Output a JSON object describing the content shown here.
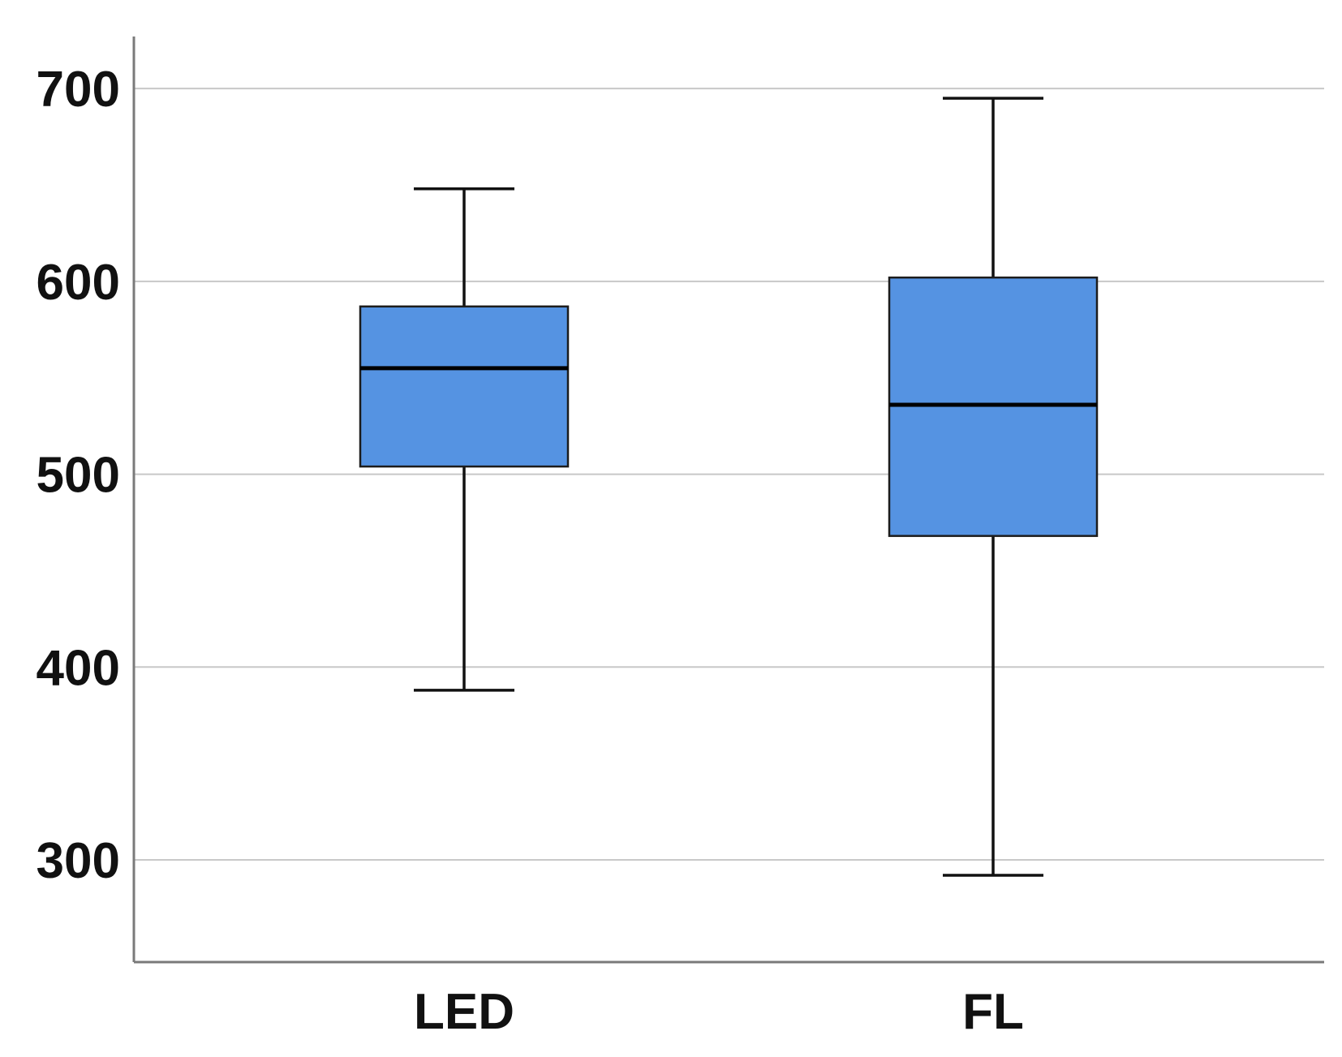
{
  "chart_data": {
    "type": "boxplot",
    "title": "",
    "xlabel": "",
    "ylabel": "",
    "ylim": [
      247,
      727
    ],
    "yticks": [
      300,
      400,
      500,
      600,
      700
    ],
    "categories": [
      "LED",
      "FL"
    ],
    "boxes": [
      {
        "category": "LED",
        "whisker_low": 388,
        "q1": 504,
        "median": 555,
        "q3": 587,
        "whisker_high": 648
      },
      {
        "category": "FL",
        "whisker_low": 292,
        "q1": 468,
        "median": 536,
        "q3": 602,
        "whisker_high": 695
      }
    ],
    "grid": "horizontal",
    "colors": {
      "box_fill": "#5593e2",
      "box_stroke": "#1c1c1c",
      "whisker": "#111111",
      "median": "#000000",
      "grid": "#c8c8c8",
      "axis": "#7a7a7a"
    }
  }
}
